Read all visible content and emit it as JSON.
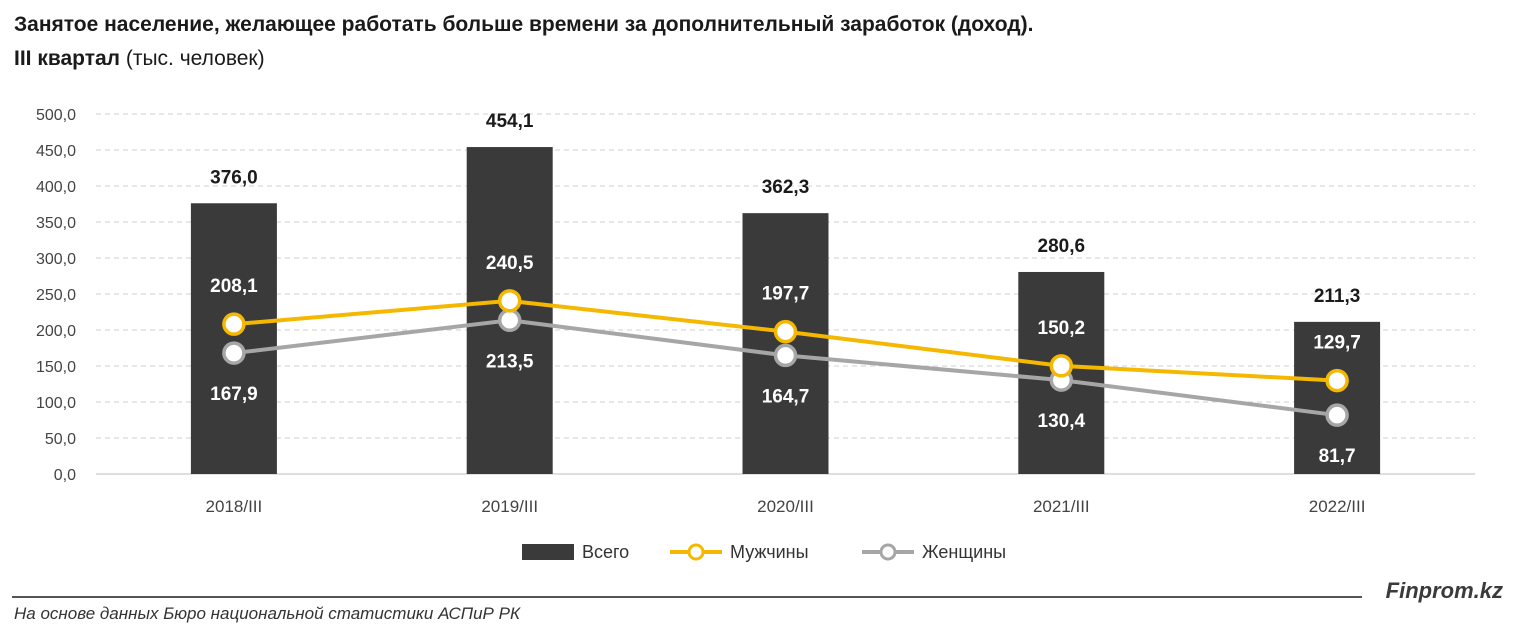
{
  "header": {
    "title_line1": "Занятое население, желающее работать больше времени за дополнительный заработок (доход).",
    "title_line2_bold": "III квартал",
    "title_line2_rest": " (тыс. человек)"
  },
  "footer": {
    "brand": "Finprom.kz",
    "source": "На основе данных Бюро национальной статистики АСПиР РК"
  },
  "chart_data": {
    "type": "bar",
    "categories": [
      "2018/III",
      "2019/III",
      "2020/III",
      "2021/III",
      "2022/III"
    ],
    "ylim": [
      0,
      500
    ],
    "yticks": [
      "0,0",
      "50,0",
      "100,0",
      "150,0",
      "200,0",
      "250,0",
      "300,0",
      "350,0",
      "400,0",
      "450,0",
      "500,0"
    ],
    "grid": true,
    "legend_position": "bottom",
    "series": [
      {
        "name": "Всего",
        "kind": "bar",
        "color": "#3a3a3a",
        "values": [
          376.0,
          454.1,
          362.3,
          280.6,
          211.3
        ],
        "labels": [
          "376,0",
          "454,1",
          "362,3",
          "280,6",
          "211,3"
        ]
      },
      {
        "name": "Мужчины",
        "kind": "line",
        "color": "#f5b800",
        "values": [
          208.1,
          240.5,
          197.7,
          150.2,
          129.7
        ],
        "labels": [
          "208,1",
          "240,5",
          "197,7",
          "150,2",
          "129,7"
        ]
      },
      {
        "name": "Женщины",
        "kind": "line",
        "color": "#a6a6a6",
        "values": [
          167.9,
          213.5,
          164.7,
          130.4,
          81.7
        ],
        "labels": [
          "167,9",
          "213,5",
          "164,7",
          "130,4",
          "81,7"
        ]
      }
    ]
  }
}
